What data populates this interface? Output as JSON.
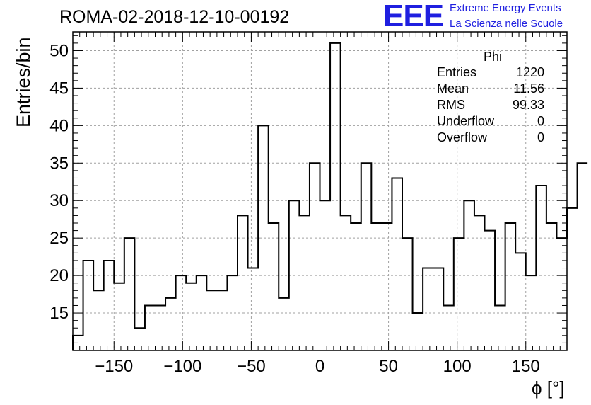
{
  "header": {
    "title": "ROMA-02-2018-12-10-00192",
    "logo_text": "EEE",
    "org_line1": "Extreme Energy Events",
    "org_line2": "La Scienza nelle Scuole"
  },
  "colors": {
    "logo": "#1f1fe0",
    "org": "#1f1fe0",
    "line": "#000000",
    "grid": "#a0a0a0"
  },
  "stats": {
    "name": "Phi",
    "rows": [
      {
        "label": "Entries",
        "value": "1220"
      },
      {
        "label": "Mean",
        "value": "11.56"
      },
      {
        "label": "RMS",
        "value": "99.33"
      },
      {
        "label": "Underflow",
        "value": "0"
      },
      {
        "label": "Overflow",
        "value": "0"
      }
    ]
  },
  "chart_data": {
    "type": "histogram",
    "title": "ROMA-02-2018-12-10-00192",
    "xlabel": "ϕ [°]",
    "ylabel": "Entries/bin",
    "xlim": [
      -180,
      180
    ],
    "ylim": [
      10,
      52.5
    ],
    "bin_width": 7.5,
    "bin_edges_start": -180,
    "x_ticks": [
      -150,
      -100,
      -50,
      0,
      50,
      100,
      150
    ],
    "y_ticks": [
      15,
      20,
      25,
      30,
      35,
      40,
      45,
      50
    ],
    "grid": true,
    "values": [
      12,
      22,
      18,
      22,
      19,
      25,
      13,
      16,
      16,
      17,
      20,
      19,
      20,
      18,
      18,
      20,
      28,
      21,
      40,
      27,
      17,
      30,
      28,
      35,
      30,
      51,
      28,
      27,
      35,
      27,
      27,
      33,
      25,
      15,
      21,
      21,
      16,
      25,
      30,
      28,
      26,
      16,
      27,
      23,
      20,
      32,
      27,
      25,
      29,
      35
    ]
  }
}
